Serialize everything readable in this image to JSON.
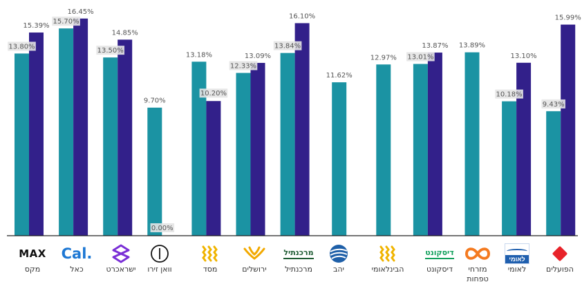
{
  "chart_data": {
    "type": "bar",
    "ylim": [
      0,
      17.5
    ],
    "categories": [
      "מקס",
      "כאל",
      "ישראכרט",
      "וואן זירו",
      "מסד",
      "ירושלים",
      "מרכנתיל",
      "יהב",
      "הבינלאומי",
      "דיסקונט",
      "מזרחי טפחות",
      "לאומי",
      "הפועלים"
    ],
    "series": [
      {
        "values": [
          13.8,
          15.7,
          13.5,
          9.7,
          13.18,
          12.33,
          13.84,
          11.62,
          12.97,
          13.01,
          13.89,
          10.18,
          9.43
        ],
        "labels": [
          "13.80%",
          "15.70%",
          "13.50%",
          "9.70%",
          "13.18%",
          "12.33%",
          "13.84%",
          "11.62%",
          "12.97%",
          "13.01%",
          "13.89%",
          "10.18%",
          "9.43%"
        ]
      },
      {
        "values": [
          15.39,
          16.45,
          14.85,
          0.0,
          10.2,
          13.09,
          16.1,
          null,
          null,
          13.87,
          null,
          13.1,
          15.99
        ],
        "labels": [
          "15.39%",
          "16.45%",
          "14.85%",
          "0.00%",
          "10.20%",
          "13.09%",
          "16.10%",
          "",
          "",
          "13.87%",
          "",
          "13.10%",
          "15.99%"
        ]
      }
    ],
    "colors": [
      "#1b93a3",
      "#32208a"
    ]
  },
  "logos": [
    {
      "icon": "max-logo",
      "text": "MAX",
      "name": "מקס"
    },
    {
      "icon": "cal-logo",
      "text": "Cal.",
      "name": "כאל"
    },
    {
      "icon": "isracard-logo",
      "name": "ישראכרט"
    },
    {
      "icon": "one-zero-logo",
      "name": "וואן זירו"
    },
    {
      "icon": "massad-logo",
      "name": "מסד"
    },
    {
      "icon": "jerusalem-logo",
      "name": "ירושלים"
    },
    {
      "icon": "mercantile-logo",
      "text": "מרכנתיל",
      "name": "מרכנתיל"
    },
    {
      "icon": "yahav-logo",
      "name": "יהב"
    },
    {
      "icon": "fibi-logo",
      "name": "הבינלאומי"
    },
    {
      "icon": "discount-logo",
      "text": "דיסקונט",
      "name": "דיסקונט"
    },
    {
      "icon": "mizrahi-logo",
      "name": "מזרחי טפחות"
    },
    {
      "icon": "leumi-logo",
      "text": "לאומי",
      "name": "לאומי"
    },
    {
      "icon": "hapoalim-logo",
      "name": "הפועלים"
    }
  ]
}
